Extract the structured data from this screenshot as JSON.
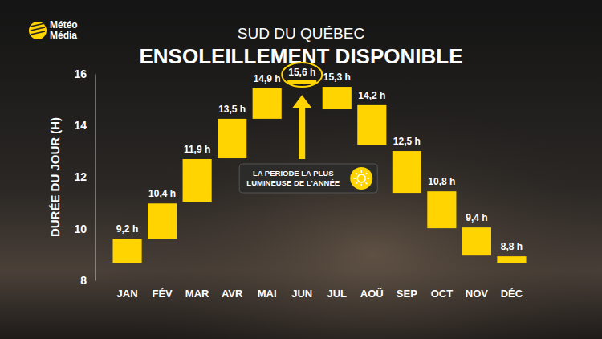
{
  "chart_data": {
    "type": "bar",
    "subtitle": "SUD DU QUÉBEC",
    "title": "ENSOLEILLEMENT DISPONIBLE",
    "y_label": "DURÉE DU JOUR (H)",
    "categories": [
      "JAN",
      "FÉV",
      "MAR",
      "AVR",
      "MAI",
      "JUN",
      "JUL",
      "AOÛ",
      "SEP",
      "OCT",
      "NOV",
      "DÉC"
    ],
    "values": [
      [
        8.68,
        9.61
      ],
      [
        9.61,
        10.98
      ],
      [
        11.05,
        12.7
      ],
      [
        12.73,
        14.26
      ],
      [
        14.26,
        15.44
      ],
      [
        15.62,
        15.78
      ],
      [
        14.63,
        15.5
      ],
      [
        13.26,
        14.79
      ],
      [
        11.39,
        13.01
      ],
      [
        10.02,
        11.45
      ],
      [
        8.96,
        10.05
      ],
      [
        8.68,
        8.93
      ]
    ],
    "labels": [
      "9,2 h",
      "10,4 h",
      "11,9 h",
      "13,5 h",
      "14,9 h",
      "15,6 h",
      "15,3 h",
      "14,2 h",
      "12,5 h",
      "10,8 h",
      "9,4 h",
      "8,8 h"
    ],
    "color": "#ffd400",
    "ylim": [
      8,
      16
    ],
    "yticks": [
      8,
      10,
      12,
      14,
      16
    ],
    "grid": false,
    "data_labels": true,
    "annotation": {
      "lines": [
        "LA PÉRIODE LA PLUS",
        "LUMINEUSE DE L'ANNÉE"
      ],
      "category": "JUN"
    },
    "logo": [
      "Météo",
      "Média"
    ]
  }
}
